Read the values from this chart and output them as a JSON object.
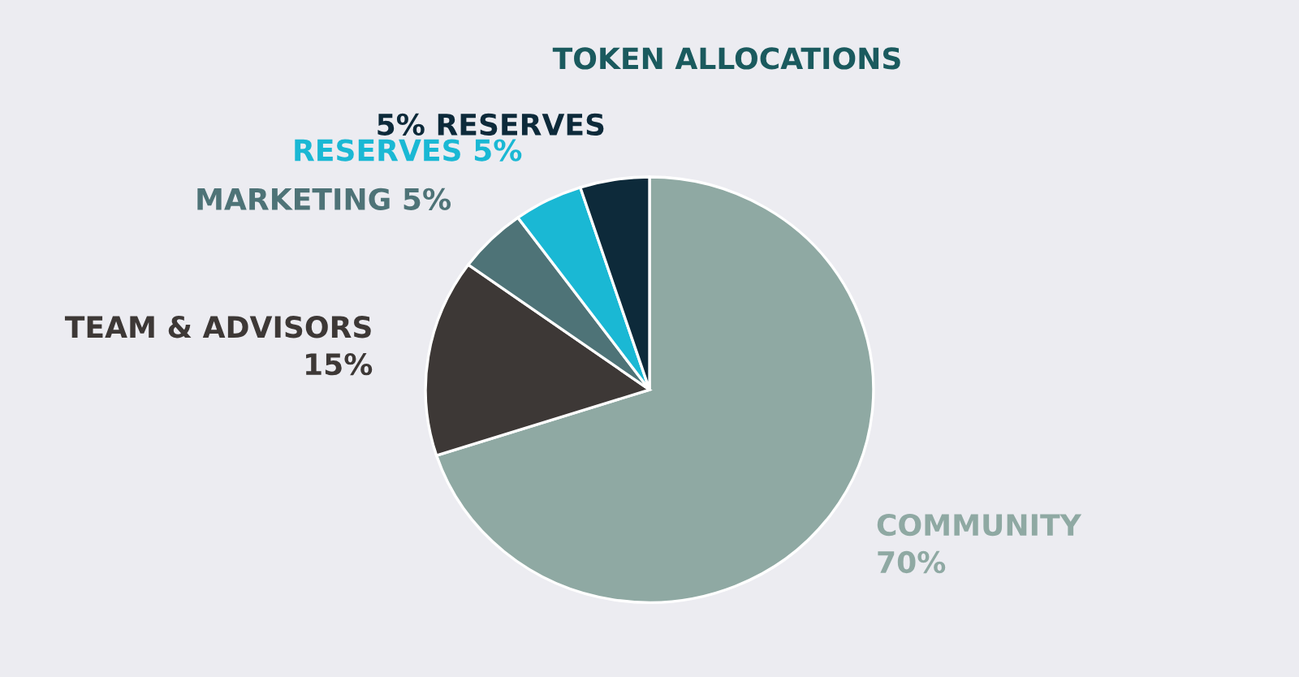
{
  "chart_data": {
    "type": "pie",
    "title": "TOKEN ALLOCATIONS",
    "categories": [
      "COMMUNITY\n70%",
      "TEAM & ADVISORS\n15%",
      "MARKETING 5%",
      "RESERVES 5%",
      "5% RESERVES"
    ],
    "values": [
      70,
      15,
      5,
      5,
      5
    ],
    "colors": [
      "#8fa9a3",
      "#3d3836",
      "#4e7377",
      "#1ab8d4",
      "#0d2a3a"
    ],
    "legend": false
  }
}
